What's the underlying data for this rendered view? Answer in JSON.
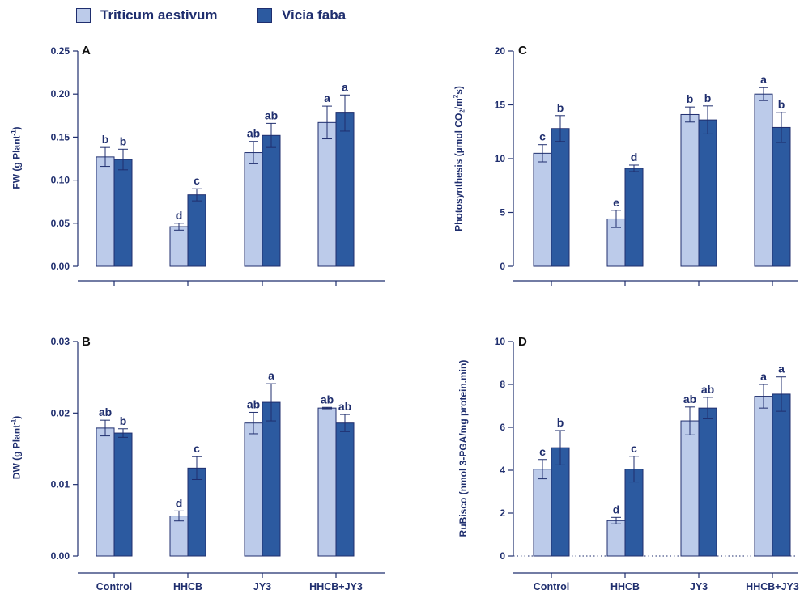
{
  "legend": {
    "items": [
      {
        "label": "Triticum aestivum",
        "color": "#bccbea"
      },
      {
        "label": "Vicia faba",
        "color": "#2c5aa0"
      }
    ]
  },
  "colors": {
    "axis": "#1f2e6e",
    "error": "#1f2e6e",
    "letters": "#1f2e6e"
  },
  "chart_data": [
    {
      "type": "bar",
      "panel": "A",
      "ylabel_main": "FW (g Plant",
      "ylabel_sup": "-1",
      "ylabel_end": ")",
      "categories": [
        "Control",
        "HHCB",
        "JY3",
        "HHCB+JY3"
      ],
      "show_xticklabels": false,
      "ylim": [
        0,
        0.25
      ],
      "yticks": [
        "0.00",
        "0.05",
        "0.10",
        "0.15",
        "0.20",
        "0.25"
      ],
      "series": [
        {
          "values": [
            0.127,
            0.046,
            0.132,
            0.167
          ],
          "errors": [
            0.011,
            0.004,
            0.013,
            0.019
          ],
          "letters": [
            "b",
            "d",
            "ab",
            "a"
          ]
        },
        {
          "values": [
            0.124,
            0.083,
            0.152,
            0.178
          ],
          "errors": [
            0.012,
            0.007,
            0.014,
            0.021
          ],
          "letters": [
            "b",
            "c",
            "ab",
            "a"
          ]
        }
      ]
    },
    {
      "type": "bar",
      "panel": "B",
      "ylabel_main": "DW (g Plant",
      "ylabel_sup": "-1",
      "ylabel_end": ")",
      "categories": [
        "Control",
        "HHCB",
        "JY3",
        "HHCB+JY3"
      ],
      "show_xticklabels": true,
      "ylim": [
        0,
        0.03
      ],
      "yticks": [
        "0.00",
        "0.01",
        "0.02",
        "0.03"
      ],
      "series": [
        {
          "values": [
            0.0179,
            0.0056,
            0.0186,
            0.0207
          ],
          "errors": [
            0.0011,
            0.0007,
            0.0015,
            0.0001
          ],
          "letters": [
            "ab",
            "d",
            "ab",
            "ab"
          ]
        },
        {
          "values": [
            0.0172,
            0.0123,
            0.0215,
            0.0186
          ],
          "errors": [
            0.0006,
            0.0016,
            0.0026,
            0.0012
          ],
          "letters": [
            "b",
            "c",
            "a",
            "ab"
          ]
        }
      ]
    },
    {
      "type": "bar",
      "panel": "C",
      "ylabel_main": "Photosynthesis (µmol CO",
      "ylabel_sub": "2",
      "ylabel_mid": "/m",
      "ylabel_sup": "2",
      "ylabel_end": "s)",
      "categories": [
        "Control",
        "HHCB",
        "JY3",
        "HHCB+JY3"
      ],
      "show_xticklabels": false,
      "ylim": [
        0,
        20
      ],
      "yticks": [
        "0",
        "5",
        "10",
        "15",
        "20"
      ],
      "series": [
        {
          "values": [
            10.5,
            4.4,
            14.1,
            16.0
          ],
          "errors": [
            0.8,
            0.8,
            0.7,
            0.6
          ],
          "letters": [
            "c",
            "e",
            "b",
            "a"
          ]
        },
        {
          "values": [
            12.8,
            9.1,
            13.6,
            12.9
          ],
          "errors": [
            1.2,
            0.3,
            1.3,
            1.4
          ],
          "letters": [
            "b",
            "d",
            "b",
            "b"
          ]
        }
      ]
    },
    {
      "type": "bar",
      "panel": "D",
      "ylabel_main": "RuBisco  (nmol 3-PGA/mg protein.min)",
      "categories": [
        "Control",
        "HHCB",
        "JY3",
        "HHCB+JY3"
      ],
      "show_xticklabels": true,
      "dotted_baseline": true,
      "ylim": [
        0,
        10
      ],
      "yticks": [
        "0",
        "2",
        "4",
        "6",
        "8",
        "10"
      ],
      "series": [
        {
          "values": [
            4.05,
            1.65,
            6.3,
            7.45
          ],
          "errors": [
            0.45,
            0.15,
            0.65,
            0.55
          ],
          "letters": [
            "c",
            "d",
            "ab",
            "a"
          ]
        },
        {
          "values": [
            5.05,
            4.05,
            6.9,
            7.55
          ],
          "errors": [
            0.8,
            0.6,
            0.5,
            0.8
          ],
          "letters": [
            "b",
            "c",
            "ab",
            "a"
          ]
        }
      ]
    }
  ]
}
